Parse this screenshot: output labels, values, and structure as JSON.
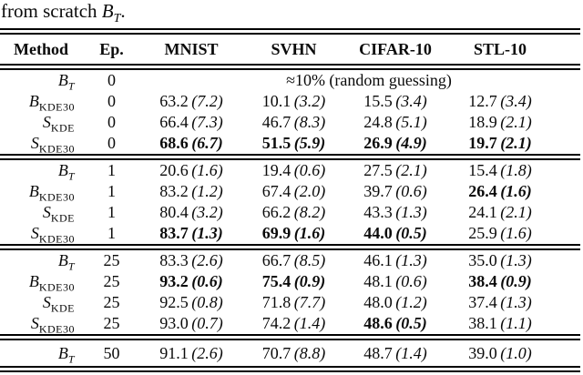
{
  "caption": {
    "prefix": "from scratch ",
    "math_main": "B",
    "math_sub": "T",
    "suffix": "."
  },
  "table": {
    "headers": [
      "Method",
      "Ep.",
      "MNIST",
      "SVHN",
      "CIFAR-10",
      "STL-10"
    ],
    "blocks": [
      {
        "rows": [
          {
            "method": {
              "main": "B",
              "sub": "T",
              "italic_sub": true
            },
            "ep": "0",
            "span": "≈10% (random guessing)"
          },
          {
            "method": {
              "main": "B",
              "sub": "KDE30"
            },
            "ep": "0",
            "cells": [
              {
                "v": "63.2",
                "s": "(7.2)"
              },
              {
                "v": "10.1",
                "s": "(3.2)"
              },
              {
                "v": "15.5",
                "s": "(3.4)"
              },
              {
                "v": "12.7",
                "s": "(3.4)"
              }
            ]
          },
          {
            "method": {
              "main": "S",
              "sub": "KDE"
            },
            "ep": "0",
            "cells": [
              {
                "v": "66.4",
                "s": "(7.3)"
              },
              {
                "v": "46.7",
                "s": "(8.3)"
              },
              {
                "v": "24.8",
                "s": "(5.1)"
              },
              {
                "v": "18.9",
                "s": "(2.1)"
              }
            ]
          },
          {
            "method": {
              "main": "S",
              "sub": "KDE30"
            },
            "ep": "0",
            "cells": [
              {
                "v": "68.6",
                "s": "(6.7)",
                "b": true
              },
              {
                "v": "51.5",
                "s": "(5.9)",
                "b": true
              },
              {
                "v": "26.9",
                "s": "(4.9)",
                "b": true
              },
              {
                "v": "19.7",
                "s": "(2.1)",
                "b": true
              }
            ]
          }
        ]
      },
      {
        "rows": [
          {
            "method": {
              "main": "B",
              "sub": "T",
              "italic_sub": true
            },
            "ep": "1",
            "cells": [
              {
                "v": "20.6",
                "s": "(1.6)"
              },
              {
                "v": "19.4",
                "s": "(0.6)"
              },
              {
                "v": "27.5",
                "s": "(2.1)"
              },
              {
                "v": "15.4",
                "s": "(1.8)"
              }
            ]
          },
          {
            "method": {
              "main": "B",
              "sub": "KDE30"
            },
            "ep": "1",
            "cells": [
              {
                "v": "83.2",
                "s": "(1.2)"
              },
              {
                "v": "67.4",
                "s": "(2.0)"
              },
              {
                "v": "39.7",
                "s": "(0.6)"
              },
              {
                "v": "26.4",
                "s": "(1.6)",
                "b": true
              }
            ]
          },
          {
            "method": {
              "main": "S",
              "sub": "KDE"
            },
            "ep": "1",
            "cells": [
              {
                "v": "80.4",
                "s": "(3.2)"
              },
              {
                "v": "66.2",
                "s": "(8.2)"
              },
              {
                "v": "43.3",
                "s": "(1.3)"
              },
              {
                "v": "24.1",
                "s": "(2.1)"
              }
            ]
          },
          {
            "method": {
              "main": "S",
              "sub": "KDE30"
            },
            "ep": "1",
            "cells": [
              {
                "v": "83.7",
                "s": "(1.3)",
                "b": true
              },
              {
                "v": "69.9",
                "s": "(1.6)",
                "b": true
              },
              {
                "v": "44.0",
                "s": "(0.5)",
                "b": true
              },
              {
                "v": "25.9",
                "s": "(1.6)"
              }
            ]
          }
        ]
      },
      {
        "rows": [
          {
            "method": {
              "main": "B",
              "sub": "T",
              "italic_sub": true
            },
            "ep": "25",
            "cells": [
              {
                "v": "83.3",
                "s": "(2.6)"
              },
              {
                "v": "66.7",
                "s": "(8.5)"
              },
              {
                "v": "46.1",
                "s": "(1.3)"
              },
              {
                "v": "35.0",
                "s": "(1.3)"
              }
            ]
          },
          {
            "method": {
              "main": "B",
              "sub": "KDE30"
            },
            "ep": "25",
            "cells": [
              {
                "v": "93.2",
                "s": "(0.6)",
                "b": true
              },
              {
                "v": "75.4",
                "s": "(0.9)",
                "b": true
              },
              {
                "v": "48.1",
                "s": "(0.6)"
              },
              {
                "v": "38.4",
                "s": "(0.9)",
                "b": true
              }
            ]
          },
          {
            "method": {
              "main": "S",
              "sub": "KDE"
            },
            "ep": "25",
            "cells": [
              {
                "v": "92.5",
                "s": "(0.8)"
              },
              {
                "v": "71.8",
                "s": "(7.7)"
              },
              {
                "v": "48.0",
                "s": "(1.2)"
              },
              {
                "v": "37.4",
                "s": "(1.3)"
              }
            ]
          },
          {
            "method": {
              "main": "S",
              "sub": "KDE30"
            },
            "ep": "25",
            "cells": [
              {
                "v": "93.0",
                "s": "(0.7)"
              },
              {
                "v": "74.2",
                "s": "(1.4)"
              },
              {
                "v": "48.6",
                "s": "(0.5)",
                "b": true
              },
              {
                "v": "38.1",
                "s": "(1.1)"
              }
            ]
          }
        ]
      },
      {
        "rows": [
          {
            "method": {
              "main": "B",
              "sub": "T",
              "italic_sub": true
            },
            "ep": "50",
            "cells": [
              {
                "v": "91.1",
                "s": "(2.6)"
              },
              {
                "v": "70.7",
                "s": "(8.8)"
              },
              {
                "v": "48.7",
                "s": "(1.4)"
              },
              {
                "v": "39.0",
                "s": "(1.0)"
              }
            ]
          }
        ]
      }
    ]
  }
}
